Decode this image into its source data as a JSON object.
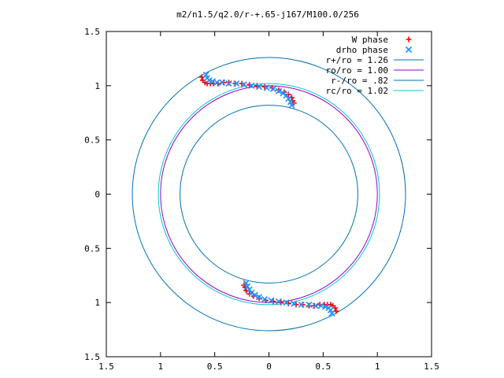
{
  "chart_data": {
    "type": "scatter",
    "title": "m2/n1.5/q2.0/r-+.65-j167/M100.0/256",
    "xlim": [
      -1.5,
      1.5
    ],
    "ylim": [
      -1.5,
      1.5
    ],
    "x_ticks": [
      -1.5,
      -1,
      -0.5,
      0,
      0.5,
      1,
      1.5
    ],
    "y_ticks": [
      -1.5,
      -1,
      -0.5,
      0,
      0.5,
      1,
      1.5
    ],
    "x_tick_labels": [
      "1.5",
      "1",
      "0.5",
      "0",
      "0.5",
      "1",
      "1.5"
    ],
    "y_tick_labels": [
      "1.5",
      "1",
      "0.5",
      "0",
      "0.5",
      "1",
      "1.5"
    ],
    "grid": false,
    "legend_position": "top-right",
    "circles": [
      {
        "label": "r+/ro = 1.26",
        "radius": 1.26,
        "color": "#0072b2"
      },
      {
        "label": "ro/ro = 1.00",
        "radius": 1.0,
        "color": "#9400d3"
      },
      {
        "label": "r-/ro = .82",
        "radius": 0.82,
        "color": "#0072b2"
      },
      {
        "label": "rc/ro = 1.02",
        "radius": 1.02,
        "color": "#00c8c8"
      }
    ],
    "series": [
      {
        "name": "W phase",
        "marker": "+",
        "color": "#ff0000",
        "points": [
          [
            -0.62,
            1.08
          ],
          [
            -0.61,
            1.05
          ],
          [
            -0.59,
            1.03
          ],
          [
            -0.57,
            1.02
          ],
          [
            -0.54,
            1.02
          ],
          [
            -0.51,
            1.02
          ],
          [
            -0.47,
            1.02
          ],
          [
            -0.42,
            1.03
          ],
          [
            -0.37,
            1.03
          ],
          [
            -0.31,
            1.02
          ],
          [
            -0.25,
            1.02
          ],
          [
            -0.18,
            1.01
          ],
          [
            -0.11,
            1.0
          ],
          [
            -0.04,
            0.99
          ],
          [
            0.03,
            0.98
          ],
          [
            0.09,
            0.96
          ],
          [
            0.14,
            0.94
          ],
          [
            0.18,
            0.92
          ],
          [
            0.21,
            0.89
          ],
          [
            0.22,
            0.86
          ],
          [
            0.23,
            0.84
          ],
          [
            0.62,
            -1.08
          ],
          [
            0.61,
            -1.05
          ],
          [
            0.59,
            -1.03
          ],
          [
            0.57,
            -1.02
          ],
          [
            0.54,
            -1.02
          ],
          [
            0.51,
            -1.02
          ],
          [
            0.47,
            -1.02
          ],
          [
            0.42,
            -1.03
          ],
          [
            0.37,
            -1.03
          ],
          [
            0.31,
            -1.02
          ],
          [
            0.25,
            -1.02
          ],
          [
            0.18,
            -1.01
          ],
          [
            0.11,
            -1.0
          ],
          [
            0.04,
            -0.99
          ],
          [
            -0.03,
            -0.98
          ],
          [
            -0.09,
            -0.96
          ],
          [
            -0.14,
            -0.94
          ],
          [
            -0.18,
            -0.92
          ],
          [
            -0.21,
            -0.89
          ],
          [
            -0.22,
            -0.86
          ],
          [
            -0.23,
            -0.84
          ]
        ]
      },
      {
        "name": "drho phase",
        "marker": "x",
        "color": "#1e90ff",
        "points": [
          [
            -0.58,
            1.1
          ],
          [
            -0.57,
            1.07
          ],
          [
            -0.55,
            1.05
          ],
          [
            -0.52,
            1.04
          ],
          [
            -0.48,
            1.03
          ],
          [
            -0.43,
            1.03
          ],
          [
            -0.37,
            1.02
          ],
          [
            -0.3,
            1.02
          ],
          [
            -0.23,
            1.01
          ],
          [
            -0.16,
            1.0
          ],
          [
            -0.09,
            0.99
          ],
          [
            -0.02,
            0.98
          ],
          [
            0.04,
            0.97
          ],
          [
            0.09,
            0.95
          ],
          [
            0.13,
            0.93
          ],
          [
            0.16,
            0.91
          ],
          [
            0.18,
            0.88
          ],
          [
            0.2,
            0.85
          ],
          [
            0.21,
            0.82
          ],
          [
            0.58,
            -1.1
          ],
          [
            0.57,
            -1.07
          ],
          [
            0.55,
            -1.05
          ],
          [
            0.52,
            -1.04
          ],
          [
            0.48,
            -1.03
          ],
          [
            0.43,
            -1.03
          ],
          [
            0.37,
            -1.02
          ],
          [
            0.3,
            -1.02
          ],
          [
            0.23,
            -1.01
          ],
          [
            0.16,
            -1.0
          ],
          [
            0.09,
            -0.99
          ],
          [
            0.02,
            -0.98
          ],
          [
            -0.04,
            -0.97
          ],
          [
            -0.09,
            -0.95
          ],
          [
            -0.13,
            -0.93
          ],
          [
            -0.16,
            -0.91
          ],
          [
            -0.18,
            -0.88
          ],
          [
            -0.2,
            -0.85
          ],
          [
            -0.21,
            -0.82
          ]
        ]
      }
    ]
  }
}
